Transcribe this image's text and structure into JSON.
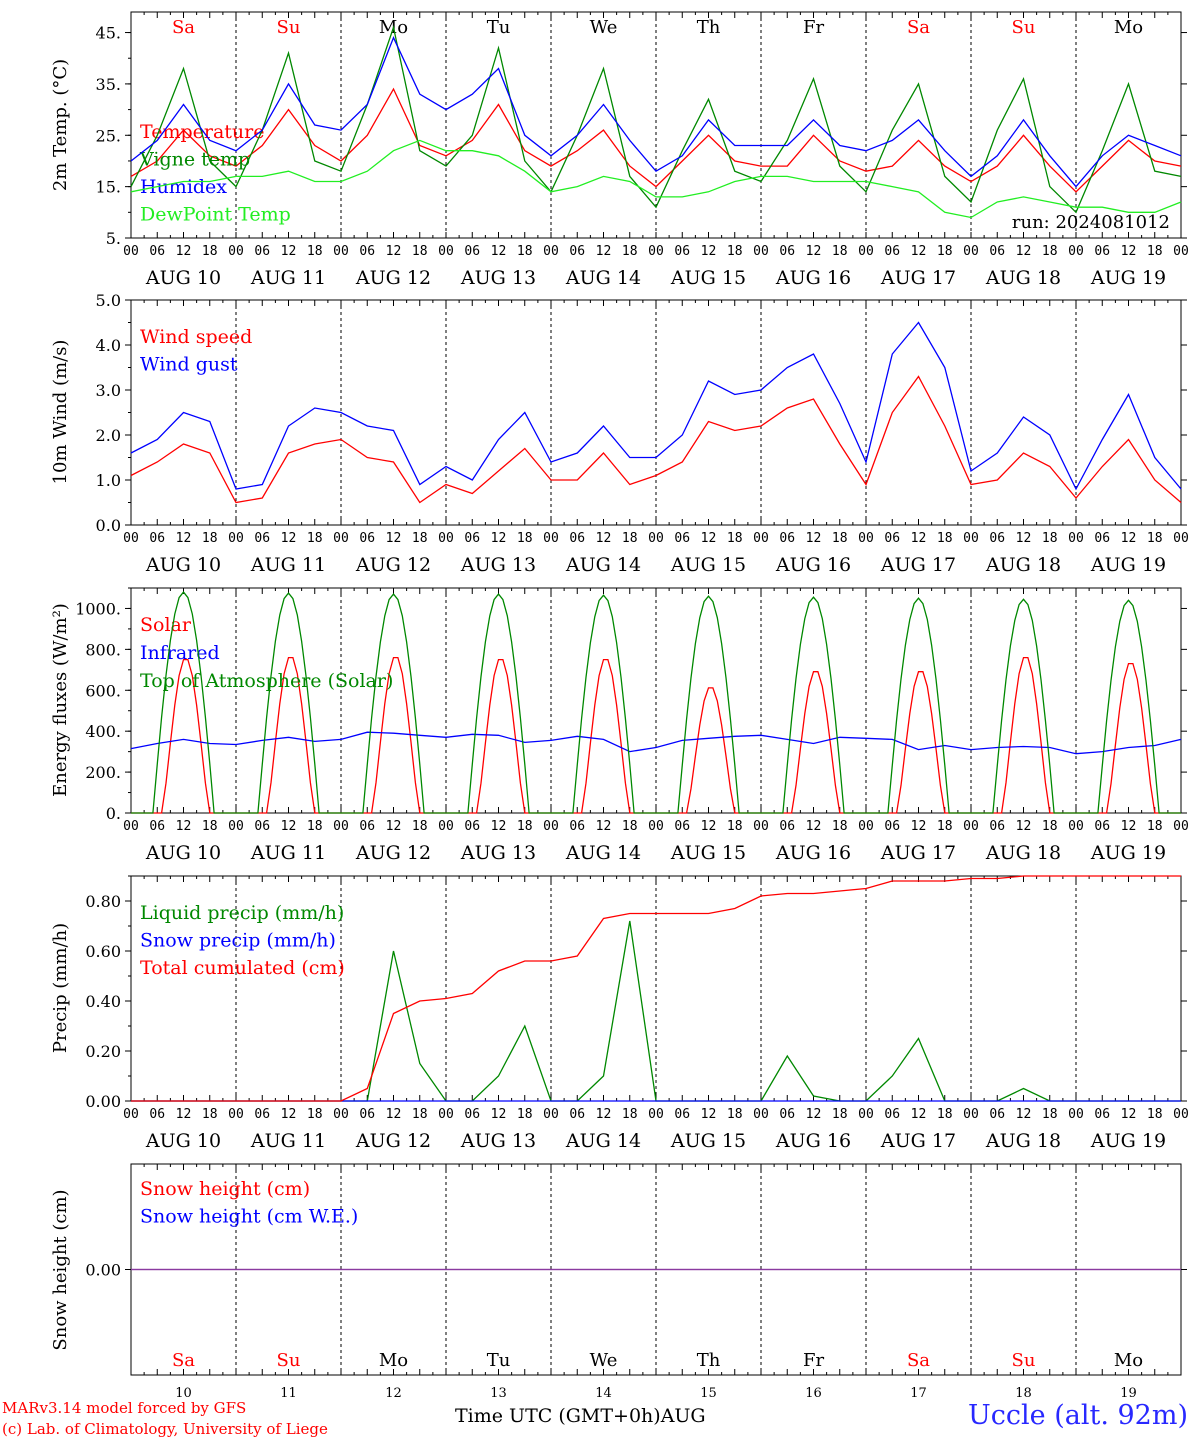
{
  "footer": {
    "model_line": "MARv3.14 model forced by GFS",
    "credit_line": "(c) Lab. of Climatology, University of Liege",
    "xlabel": "Time UTC (GMT+0h)AUG",
    "station": "Uccle (alt. 92m)"
  },
  "colors": {
    "red": "#ff0000",
    "green": "#008800",
    "blue": "#0000ff",
    "lightgreen": "#22ee22",
    "purple": "#8a3aa0"
  },
  "chart_data": {
    "run_label": "run: 2024081012",
    "days": [
      "Sa",
      "Su",
      "Mo",
      "Tu",
      "We",
      "Th",
      "Fr",
      "Sa",
      "Su",
      "Mo"
    ],
    "weekend_days": [
      0,
      1,
      7,
      8
    ],
    "dates": [
      "AUG 10",
      "AUG 11",
      "AUG 12",
      "AUG 13",
      "AUG 14",
      "AUG 15",
      "AUG 16",
      "AUG 17",
      "AUG 18",
      "AUG 19"
    ],
    "day_numbers": [
      "10",
      "11",
      "12",
      "13",
      "14",
      "15",
      "16",
      "17",
      "18",
      "19"
    ],
    "hour_ticks": [
      "00",
      "06",
      "12",
      "18"
    ],
    "hour_end_tick": "00",
    "x_unit": "hours since run start, 6h resolution",
    "panels": [
      {
        "type": "line",
        "ylabel": "2m Temp. (°C)",
        "ylim": [
          5,
          49
        ],
        "yticks": [
          5,
          15,
          25,
          35,
          45
        ],
        "ytick_labels": [
          "5.",
          "15.",
          "25.",
          "35.",
          "45."
        ],
        "series": [
          {
            "name": "Temperature",
            "color": "red",
            "values": [
              17,
              20,
              26,
              21,
              19,
              23,
              30,
              23,
              20,
              25,
              34,
              23,
              21,
              24,
              31,
              22,
              19,
              22,
              26,
              19,
              15,
              20,
              25,
              20,
              19,
              19,
              25,
              20,
              18,
              19,
              24,
              19,
              16,
              19,
              25,
              19,
              14,
              19,
              24,
              20,
              19
            ]
          },
          {
            "name": "Vigne temp",
            "color": "green",
            "values": [
              15,
              25,
              38,
              20,
              15,
              26,
              41,
              20,
              18,
              31,
              46,
              22,
              19,
              25,
              42,
              20,
              14,
              25,
              38,
              17,
              11,
              22,
              32,
              18,
              16,
              24,
              36,
              19,
              14,
              26,
              35,
              17,
              12,
              26,
              36,
              15,
              10,
              22,
              35,
              18,
              17
            ]
          },
          {
            "name": "Humidex",
            "color": "blue",
            "values": [
              20,
              24,
              31,
              24,
              22,
              26,
              35,
              27,
              26,
              31,
              44,
              33,
              30,
              33,
              38,
              25,
              21,
              25,
              31,
              24,
              18,
              21,
              28,
              23,
              23,
              23,
              28,
              23,
              22,
              24,
              28,
              22,
              17,
              21,
              28,
              21,
              15,
              21,
              25,
              23,
              21
            ]
          },
          {
            "name": "DewPoint Temp",
            "color": "lightgreen",
            "values": [
              14,
              15,
              16,
              16,
              17,
              17,
              18,
              16,
              16,
              18,
              22,
              24,
              22,
              22,
              21,
              18,
              14,
              15,
              17,
              16,
              13,
              13,
              14,
              16,
              17,
              17,
              16,
              16,
              16,
              15,
              14,
              10,
              9,
              12,
              13,
              12,
              11,
              11,
              10,
              10,
              12
            ]
          }
        ]
      },
      {
        "type": "line",
        "ylabel": "10m Wind (m/s)",
        "ylim": [
          0,
          5
        ],
        "yticks": [
          0,
          1,
          2,
          3,
          4,
          5
        ],
        "ytick_labels": [
          "0.0",
          "1.0",
          "2.0",
          "3.0",
          "4.0",
          "5.0"
        ],
        "series": [
          {
            "name": "Wind speed",
            "color": "red",
            "values": [
              1.1,
              1.4,
              1.8,
              1.6,
              0.5,
              0.6,
              1.6,
              1.8,
              1.9,
              1.5,
              1.4,
              0.5,
              0.9,
              0.7,
              1.2,
              1.7,
              1.0,
              1.0,
              1.6,
              0.9,
              1.1,
              1.4,
              2.3,
              2.1,
              2.2,
              2.6,
              2.8,
              1.8,
              0.9,
              2.5,
              3.3,
              2.2,
              0.9,
              1.0,
              1.6,
              1.3,
              0.6,
              1.3,
              1.9,
              1.0,
              0.5
            ]
          },
          {
            "name": "Wind gust",
            "color": "blue",
            "values": [
              1.6,
              1.9,
              2.5,
              2.3,
              0.8,
              0.9,
              2.2,
              2.6,
              2.5,
              2.2,
              2.1,
              0.9,
              1.3,
              1.0,
              1.9,
              2.5,
              1.4,
              1.6,
              2.2,
              1.5,
              1.5,
              2.0,
              3.2,
              2.9,
              3.0,
              3.5,
              3.8,
              2.7,
              1.4,
              3.8,
              4.5,
              3.5,
              1.2,
              1.6,
              2.4,
              2.0,
              0.8,
              1.9,
              2.9,
              1.5,
              0.8
            ]
          }
        ]
      },
      {
        "type": "line",
        "ylabel": "Energy fluxes (W/m²)",
        "ylim": [
          0,
          1100
        ],
        "yticks": [
          0,
          200,
          400,
          600,
          800,
          1000
        ],
        "ytick_labels": [
          "0.",
          "200.",
          "400.",
          "600.",
          "800.",
          "1000."
        ],
        "series": [
          {
            "name": "Solar",
            "color": "red",
            "curve": "daily",
            "peaks": [
              760,
              770,
              770,
              760,
              760,
              620,
              700,
              700,
              770,
              740
            ]
          },
          {
            "name": "Infrared",
            "color": "blue",
            "values": [
              315,
              340,
              360,
              340,
              335,
              355,
              370,
              350,
              360,
              395,
              390,
              380,
              370,
              385,
              380,
              345,
              355,
              375,
              360,
              300,
              320,
              355,
              365,
              375,
              380,
              360,
              340,
              370,
              365,
              360,
              310,
              330,
              310,
              320,
              325,
              320,
              290,
              300,
              320,
              330,
              360
            ]
          },
          {
            "name": "Top of Atmosphere (Solar)",
            "color": "green",
            "curve": "daily",
            "peaks": [
              1080,
              1075,
              1070,
              1070,
              1065,
              1060,
              1055,
              1050,
              1045,
              1040
            ]
          }
        ]
      },
      {
        "type": "line",
        "ylabel": "Precip (mm/h)",
        "ylim": [
          0,
          0.9
        ],
        "yticks": [
          0,
          0.2,
          0.4,
          0.6,
          0.8
        ],
        "ytick_labels": [
          "0.00",
          "0.20",
          "0.40",
          "0.60",
          "0.80"
        ],
        "series": [
          {
            "name": "Liquid precip (mm/h)",
            "color": "green",
            "values": [
              0,
              0,
              0,
              0,
              0,
              0,
              0,
              0,
              0,
              0,
              0.6,
              0.15,
              0,
              0,
              0.1,
              0.3,
              0,
              0,
              0.1,
              0.72,
              0,
              0,
              0,
              0,
              0,
              0.18,
              0.02,
              0,
              0,
              0.1,
              0.25,
              0,
              0,
              0,
              0.05,
              0,
              0,
              0,
              0,
              0,
              0
            ]
          },
          {
            "name": "Snow precip (mm/h)",
            "color": "blue",
            "values": [
              0,
              0,
              0,
              0,
              0,
              0,
              0,
              0,
              0,
              0,
              0,
              0,
              0,
              0,
              0,
              0,
              0,
              0,
              0,
              0,
              0,
              0,
              0,
              0,
              0,
              0,
              0,
              0,
              0,
              0,
              0,
              0,
              0,
              0,
              0,
              0,
              0,
              0,
              0,
              0,
              0
            ]
          },
          {
            "name": "Total cumulated (cm)",
            "color": "red",
            "values": [
              0,
              0,
              0,
              0,
              0,
              0,
              0,
              0,
              0,
              0.05,
              0.35,
              0.4,
              0.41,
              0.43,
              0.52,
              0.56,
              0.56,
              0.58,
              0.73,
              0.75,
              0.75,
              0.75,
              0.75,
              0.77,
              0.82,
              0.83,
              0.83,
              0.84,
              0.85,
              0.88,
              0.88,
              0.88,
              0.89,
              0.89,
              0.9,
              0.9,
              0.9,
              0.9,
              0.9,
              0.9,
              0.9
            ]
          }
        ]
      },
      {
        "type": "line",
        "ylabel": "Snow height (cm)",
        "ylim": [
          -0.5,
          0.5
        ],
        "yticks": [
          0
        ],
        "ytick_labels": [
          "0.00"
        ],
        "series": [
          {
            "name": "Snow height (cm)",
            "color": "red",
            "values": [
              0,
              0,
              0,
              0,
              0,
              0,
              0,
              0,
              0,
              0,
              0,
              0,
              0,
              0,
              0,
              0,
              0,
              0,
              0,
              0,
              0,
              0,
              0,
              0,
              0,
              0,
              0,
              0,
              0,
              0,
              0,
              0,
              0,
              0,
              0,
              0,
              0,
              0,
              0,
              0,
              0
            ]
          },
          {
            "name": "Snow height (cm W.E.)",
            "color": "blue",
            "values": [
              0,
              0,
              0,
              0,
              0,
              0,
              0,
              0,
              0,
              0,
              0,
              0,
              0,
              0,
              0,
              0,
              0,
              0,
              0,
              0,
              0,
              0,
              0,
              0,
              0,
              0,
              0,
              0,
              0,
              0,
              0,
              0,
              0,
              0,
              0,
              0,
              0,
              0,
              0,
              0,
              0
            ]
          }
        ]
      }
    ]
  }
}
